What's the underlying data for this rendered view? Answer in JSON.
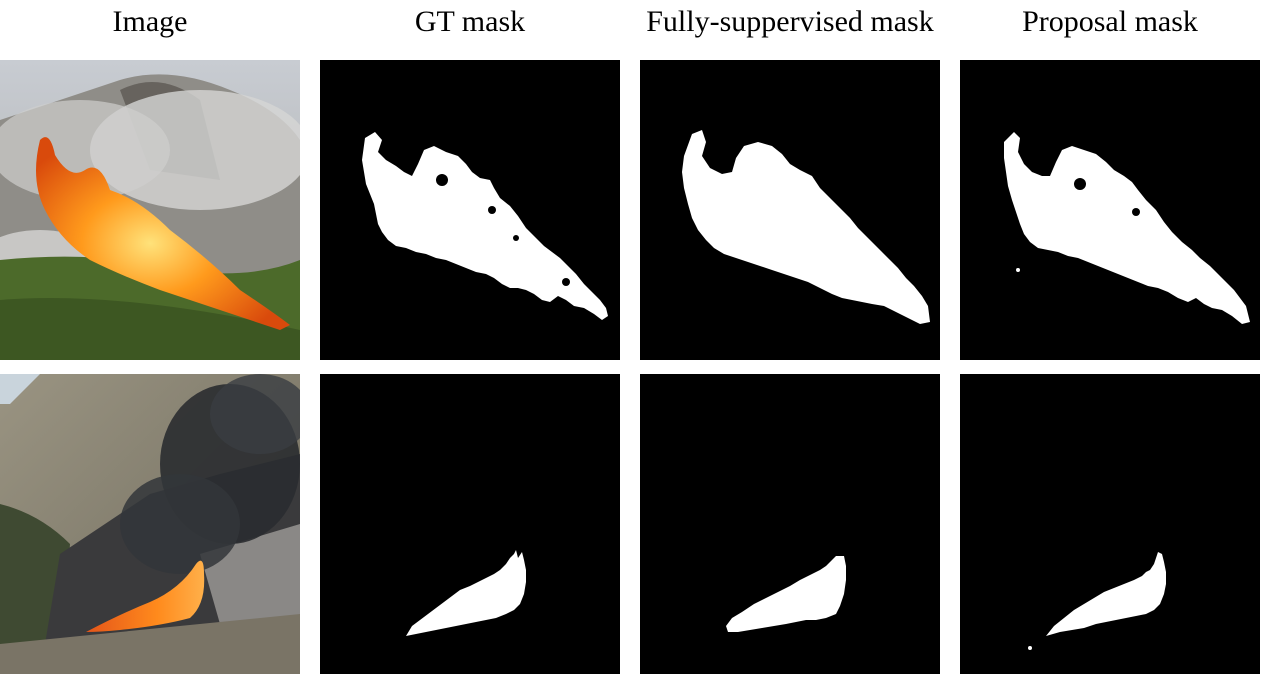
{
  "columns": [
    {
      "label": "Image"
    },
    {
      "label": "GT mask"
    },
    {
      "label": "Fully-suppervised mask"
    },
    {
      "label": "Proposal mask"
    }
  ],
  "colors": {
    "mask_background": "#000000",
    "mask_foreground": "#ffffff",
    "flame": "#ff8a10",
    "smoke": "#c9c9c9"
  },
  "rows": [
    {
      "scene": "wildfire-on-green-hillside-photo"
    },
    {
      "scene": "wildfire-under-dark-smoke-photo"
    }
  ]
}
